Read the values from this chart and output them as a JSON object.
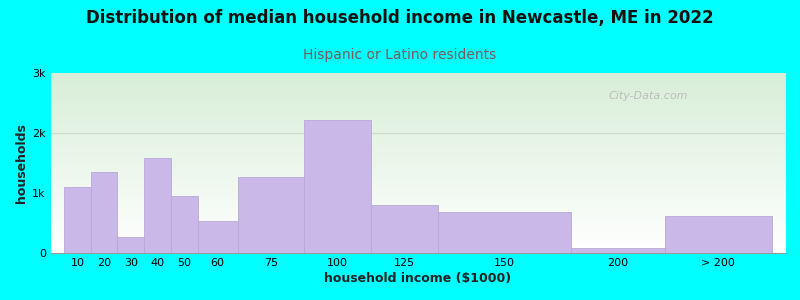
{
  "title": "Distribution of median household income in Newcastle, ME in 2022",
  "subtitle": "Hispanic or Latino residents",
  "xlabel": "household income ($1000)",
  "ylabel": "households",
  "background_color": "#00FFFF",
  "bar_color": "#c9b8e8",
  "bar_edge_color": "#b8a8d8",
  "categories": [
    "10",
    "20",
    "30",
    "40",
    "50",
    "60",
    "75",
    "100",
    "125",
    "150",
    "200",
    "> 200"
  ],
  "values": [
    1100,
    1350,
    270,
    1580,
    950,
    530,
    1260,
    2220,
    800,
    680,
    80,
    620
  ],
  "bar_lefts": [
    10,
    20,
    30,
    40,
    50,
    60,
    75,
    100,
    125,
    150,
    200,
    235
  ],
  "bar_widths": [
    10,
    10,
    10,
    10,
    10,
    15,
    25,
    25,
    25,
    50,
    35,
    40
  ],
  "ylim": [
    0,
    3000
  ],
  "yticks": [
    0,
    1000,
    2000,
    3000
  ],
  "ytick_labels": [
    "0",
    "1k",
    "2k",
    "3k"
  ],
  "xlim_left": 5,
  "xlim_right": 280,
  "title_fontsize": 12,
  "subtitle_fontsize": 10,
  "subtitle_color": "#7a5a5a",
  "axis_label_fontsize": 9,
  "tick_fontsize": 8,
  "watermark": "City-Data.com",
  "hline_y": 2000,
  "hline_color": "#d0d8d0",
  "plot_bg_color_top": "#d8eed8",
  "plot_bg_color_bottom": "#ffffff"
}
